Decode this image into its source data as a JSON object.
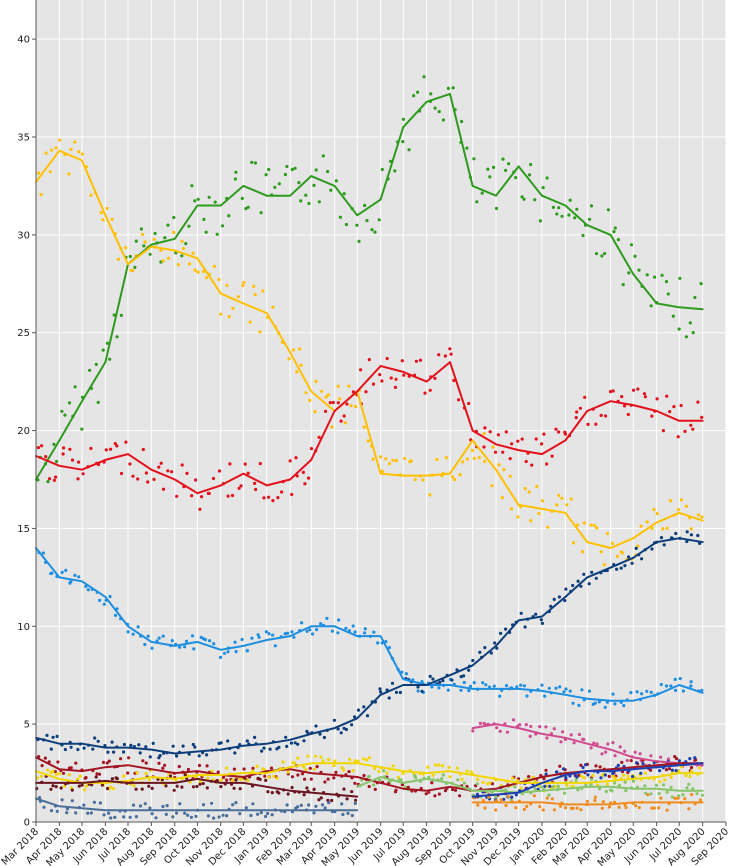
{
  "chart_data": {
    "type": "scatter",
    "title": "",
    "xlabel": "",
    "ylabel": "",
    "grid": true,
    "legend": "none",
    "x_range": [
      "2018-03-01",
      "2020-09-01"
    ],
    "ylim": [
      0,
      42
    ],
    "y_ticks": [
      "0",
      "5",
      "10",
      "15",
      "20",
      "25",
      "30",
      "35",
      "40"
    ],
    "x_ticks": [
      {
        "date": "2018-03-01",
        "label": "Mar 2018"
      },
      {
        "date": "2018-04-01",
        "label": "Apr 2018"
      },
      {
        "date": "2018-05-01",
        "label": "May 2018"
      },
      {
        "date": "2018-06-01",
        "label": "Jun 2018"
      },
      {
        "date": "2018-07-01",
        "label": "Jul 2018"
      },
      {
        "date": "2018-08-01",
        "label": "Aug 2018"
      },
      {
        "date": "2018-09-01",
        "label": "Sep 2018"
      },
      {
        "date": "2018-10-01",
        "label": "Oct 2018"
      },
      {
        "date": "2018-11-01",
        "label": "Nov 2018"
      },
      {
        "date": "2018-12-01",
        "label": "Dec 2018"
      },
      {
        "date": "2019-01-01",
        "label": "Jan 2019"
      },
      {
        "date": "2019-02-01",
        "label": "Feb 2019"
      },
      {
        "date": "2019-03-01",
        "label": "Mar 2019"
      },
      {
        "date": "2019-04-01",
        "label": "Apr 2019"
      },
      {
        "date": "2019-05-01",
        "label": "May 2019"
      },
      {
        "date": "2019-06-01",
        "label": "Jun 2019"
      },
      {
        "date": "2019-07-01",
        "label": "Jul 2019"
      },
      {
        "date": "2019-08-01",
        "label": "Aug 2019"
      },
      {
        "date": "2019-09-01",
        "label": "Sep 2019"
      },
      {
        "date": "2019-10-01",
        "label": "Oct 2019"
      },
      {
        "date": "2019-11-01",
        "label": "Nov 2019"
      },
      {
        "date": "2019-12-01",
        "label": "Dec 2019"
      },
      {
        "date": "2020-01-01",
        "label": "Jan 2020"
      },
      {
        "date": "2020-02-01",
        "label": "Feb 2020"
      },
      {
        "date": "2020-03-01",
        "label": "Mar 2020"
      },
      {
        "date": "2020-04-01",
        "label": "Apr 2020"
      },
      {
        "date": "2020-05-01",
        "label": "May 2020"
      },
      {
        "date": "2020-06-01",
        "label": "Jun 2020"
      },
      {
        "date": "2020-07-01",
        "label": "Jul 2020"
      },
      {
        "date": "2020-08-01",
        "label": "Aug 2020"
      },
      {
        "date": "2020-09-01",
        "label": "Sep 2020"
      }
    ],
    "series": [
      {
        "color": "#2e9a1e",
        "x": [
          "2018-03-01",
          "2018-04-01",
          "2018-05-01",
          "2018-06-01",
          "2018-07-01",
          "2018-08-01",
          "2018-09-01",
          "2018-10-01",
          "2018-11-01",
          "2018-12-01",
          "2019-01-01",
          "2019-02-01",
          "2019-03-01",
          "2019-04-01",
          "2019-05-01",
          "2019-06-01",
          "2019-07-01",
          "2019-08-01",
          "2019-09-01",
          "2019-10-01",
          "2019-11-01",
          "2019-12-01",
          "2020-01-01",
          "2020-02-01",
          "2020-03-01",
          "2020-04-01",
          "2020-05-01",
          "2020-06-01",
          "2020-07-01",
          "2020-08-01"
        ],
        "y": [
          17.5,
          19.5,
          21.5,
          23.5,
          28.5,
          29.5,
          29.8,
          31.5,
          31.5,
          32.5,
          32.0,
          32.0,
          33.0,
          32.5,
          31.0,
          31.8,
          35.5,
          36.8,
          37.2,
          32.5,
          32.0,
          33.5,
          32.0,
          31.5,
          30.5,
          30.0,
          28.0,
          26.5,
          26.3,
          26.2
        ]
      },
      {
        "color": "#ffc000",
        "x": [
          "2018-03-01",
          "2018-04-01",
          "2018-05-01",
          "2018-06-01",
          "2018-07-01",
          "2018-08-01",
          "2018-09-01",
          "2018-10-01",
          "2018-11-01",
          "2018-12-01",
          "2019-01-01",
          "2019-02-01",
          "2019-03-01",
          "2019-04-01",
          "2019-05-01",
          "2019-06-01",
          "2019-07-01",
          "2019-08-01",
          "2019-09-01",
          "2019-10-01",
          "2019-11-01",
          "2019-12-01",
          "2020-01-01",
          "2020-02-01",
          "2020-03-01",
          "2020-04-01",
          "2020-05-01",
          "2020-06-01",
          "2020-07-01",
          "2020-08-01"
        ],
        "y": [
          32.7,
          34.3,
          33.8,
          31.0,
          28.5,
          29.4,
          29.2,
          28.8,
          27.0,
          26.5,
          26.0,
          24.0,
          22.0,
          21.0,
          22.0,
          17.8,
          17.7,
          17.7,
          17.8,
          19.5,
          18.0,
          16.2,
          16.0,
          15.8,
          14.3,
          14.0,
          14.5,
          15.3,
          15.8,
          15.4
        ]
      },
      {
        "color": "#e3101c",
        "x": [
          "2018-03-01",
          "2018-04-01",
          "2018-05-01",
          "2018-06-01",
          "2018-07-01",
          "2018-08-01",
          "2018-09-01",
          "2018-10-01",
          "2018-11-01",
          "2018-12-01",
          "2019-01-01",
          "2019-02-01",
          "2019-03-01",
          "2019-04-01",
          "2019-05-01",
          "2019-06-01",
          "2019-07-01",
          "2019-08-01",
          "2019-09-01",
          "2019-10-01",
          "2019-11-01",
          "2019-12-01",
          "2020-01-01",
          "2020-02-01",
          "2020-03-01",
          "2020-04-01",
          "2020-05-01",
          "2020-06-01",
          "2020-07-01",
          "2020-08-01"
        ],
        "y": [
          18.7,
          18.2,
          18.0,
          18.5,
          18.8,
          18.0,
          17.5,
          16.8,
          17.2,
          17.8,
          17.2,
          17.5,
          18.5,
          21.0,
          22.0,
          23.3,
          23.0,
          22.5,
          23.5,
          20.0,
          19.3,
          19.0,
          18.8,
          19.5,
          21.0,
          21.5,
          21.3,
          21.0,
          20.5,
          20.5
        ]
      },
      {
        "color": "#1e8ee0",
        "x": [
          "2018-03-01",
          "2018-04-01",
          "2018-05-01",
          "2018-06-01",
          "2018-07-01",
          "2018-08-01",
          "2018-09-01",
          "2018-10-01",
          "2018-11-01",
          "2018-12-01",
          "2019-01-01",
          "2019-02-01",
          "2019-03-01",
          "2019-04-01",
          "2019-05-01",
          "2019-06-01",
          "2019-07-01",
          "2019-08-01",
          "2019-09-01",
          "2019-10-01",
          "2019-11-01",
          "2019-12-01",
          "2020-01-01",
          "2020-02-01",
          "2020-03-01",
          "2020-04-01",
          "2020-05-01",
          "2020-06-01",
          "2020-07-01",
          "2020-08-01"
        ],
        "y": [
          14.0,
          12.5,
          12.3,
          11.5,
          10.0,
          9.2,
          9.0,
          9.2,
          8.8,
          9.0,
          9.3,
          9.5,
          10.0,
          10.0,
          9.5,
          9.5,
          7.3,
          7.0,
          7.0,
          6.8,
          6.8,
          6.8,
          6.7,
          6.5,
          6.3,
          6.2,
          6.2,
          6.5,
          7.0,
          6.6
        ]
      },
      {
        "color": "#0d3e7a",
        "x": [
          "2018-03-01",
          "2018-04-01",
          "2018-05-01",
          "2018-06-01",
          "2018-07-01",
          "2018-08-01",
          "2018-09-01",
          "2018-10-01",
          "2018-11-01",
          "2018-12-01",
          "2019-01-01",
          "2019-02-01",
          "2019-03-01",
          "2019-04-01",
          "2019-05-01",
          "2019-06-01",
          "2019-07-01",
          "2019-08-01",
          "2019-09-01",
          "2019-10-01",
          "2019-11-01",
          "2019-12-01",
          "2020-01-01",
          "2020-02-01",
          "2020-03-01",
          "2020-04-01",
          "2020-05-01",
          "2020-06-01",
          "2020-07-01",
          "2020-08-01"
        ],
        "y": [
          4.3,
          4.0,
          4.0,
          3.8,
          3.8,
          3.7,
          3.5,
          3.6,
          3.7,
          3.9,
          4.0,
          4.2,
          4.5,
          4.8,
          5.3,
          6.5,
          7.0,
          7.0,
          7.5,
          8.0,
          9.0,
          10.3,
          10.5,
          11.5,
          12.5,
          13.0,
          13.5,
          14.3,
          14.5,
          14.3
        ]
      },
      {
        "color": "#d04a90",
        "x": [
          "2019-10-01",
          "2019-11-01",
          "2019-12-01",
          "2020-01-01",
          "2020-02-01",
          "2020-03-01",
          "2020-04-01",
          "2020-05-01",
          "2020-06-01",
          "2020-07-01",
          "2020-08-01"
        ],
        "y": [
          4.8,
          5.0,
          4.8,
          4.5,
          4.3,
          4.0,
          3.7,
          3.3,
          3.1,
          3.0,
          2.9
        ]
      },
      {
        "color": "#a31422",
        "x": [
          "2018-03-01",
          "2018-04-01",
          "2018-05-01",
          "2018-06-01",
          "2018-07-01",
          "2018-08-01",
          "2018-09-01",
          "2018-10-01",
          "2018-11-01",
          "2018-12-01",
          "2019-01-01",
          "2019-02-01",
          "2019-03-01",
          "2019-04-01",
          "2019-05-01",
          "2019-06-01",
          "2019-07-01",
          "2019-08-01",
          "2019-09-01",
          "2019-10-01",
          "2019-11-01",
          "2019-12-01",
          "2020-01-01",
          "2020-02-01",
          "2020-03-01",
          "2020-04-01",
          "2020-05-01",
          "2020-06-01",
          "2020-07-01",
          "2020-08-01"
        ],
        "y": [
          3.3,
          2.7,
          2.6,
          2.8,
          2.9,
          2.7,
          2.5,
          2.6,
          2.4,
          2.3,
          2.6,
          2.7,
          2.5,
          2.4,
          2.3,
          2.0,
          1.7,
          1.6,
          1.8,
          1.6,
          1.7,
          2.0,
          2.3,
          2.5,
          2.6,
          2.7,
          2.8,
          2.9,
          3.0,
          3.0
        ]
      },
      {
        "color": "#f2d600",
        "x": [
          "2018-03-01",
          "2018-04-01",
          "2018-05-01",
          "2018-06-01",
          "2018-07-01",
          "2018-08-01",
          "2018-09-01",
          "2018-10-01",
          "2018-11-01",
          "2018-12-01",
          "2019-01-01",
          "2019-02-01",
          "2019-03-01",
          "2019-04-01",
          "2019-05-01",
          "2019-06-01",
          "2019-07-01",
          "2019-08-01",
          "2019-09-01",
          "2019-10-01",
          "2019-11-01",
          "2019-12-01",
          "2020-01-01",
          "2020-02-01",
          "2020-03-01",
          "2020-04-01",
          "2020-05-01",
          "2020-06-01",
          "2020-07-01",
          "2020-08-01"
        ],
        "y": [
          2.6,
          2.2,
          2.0,
          2.0,
          2.1,
          2.3,
          2.2,
          2.4,
          2.4,
          2.5,
          2.5,
          2.8,
          3.0,
          3.0,
          3.0,
          2.8,
          2.6,
          2.5,
          2.6,
          2.4,
          2.2,
          2.0,
          2.0,
          2.0,
          2.0,
          2.1,
          2.2,
          2.3,
          2.5,
          2.5
        ]
      },
      {
        "color": "#6a1520",
        "x": [
          "2018-03-01",
          "2018-04-01",
          "2018-05-01",
          "2018-06-01",
          "2018-07-01",
          "2018-08-01",
          "2018-09-01",
          "2018-10-01",
          "2018-11-01",
          "2018-12-01",
          "2019-01-01",
          "2019-02-01",
          "2019-03-01",
          "2019-04-01",
          "2019-05-01"
        ],
        "y": [
          2.0,
          2.0,
          2.0,
          2.1,
          2.0,
          2.0,
          2.0,
          2.2,
          2.0,
          2.0,
          1.8,
          1.6,
          1.5,
          1.4,
          1.3
        ]
      },
      {
        "color": "#86c56a",
        "x": [
          "2019-05-01",
          "2019-06-01",
          "2019-07-01",
          "2019-08-01",
          "2019-09-01",
          "2019-10-01",
          "2019-11-01",
          "2019-12-01",
          "2020-01-01",
          "2020-02-01",
          "2020-03-01",
          "2020-04-01",
          "2020-05-01",
          "2020-06-01",
          "2020-07-01",
          "2020-08-01"
        ],
        "y": [
          1.8,
          2.3,
          2.0,
          2.2,
          2.0,
          1.6,
          1.6,
          1.5,
          1.6,
          1.7,
          1.8,
          1.8,
          1.7,
          1.7,
          1.6,
          1.6
        ]
      },
      {
        "color": "#1a3fb0",
        "x": [
          "2019-10-01",
          "2019-11-01",
          "2019-12-01",
          "2020-01-01",
          "2020-02-01",
          "2020-03-01",
          "2020-04-01",
          "2020-05-01",
          "2020-06-01",
          "2020-07-01",
          "2020-08-01"
        ],
        "y": [
          1.3,
          1.4,
          1.5,
          2.0,
          2.4,
          2.6,
          2.6,
          2.7,
          2.8,
          2.9,
          3.0
        ]
      },
      {
        "color": "#f08c1e",
        "x": [
          "2019-10-01",
          "2019-11-01",
          "2019-12-01",
          "2020-01-01",
          "2020-02-01",
          "2020-03-01",
          "2020-04-01",
          "2020-05-01",
          "2020-06-01",
          "2020-07-01",
          "2020-08-01"
        ],
        "y": [
          1.0,
          1.0,
          1.0,
          1.0,
          0.9,
          0.9,
          0.9,
          1.0,
          1.0,
          1.0,
          1.0
        ]
      },
      {
        "color": "#4a6e9a",
        "x": [
          "2018-03-01",
          "2018-04-01",
          "2018-05-01",
          "2018-06-01",
          "2018-07-01",
          "2018-08-01",
          "2018-09-01",
          "2018-10-01",
          "2018-11-01",
          "2018-12-01",
          "2019-01-01",
          "2019-02-01",
          "2019-03-01",
          "2019-04-01",
          "2019-05-01"
        ],
        "y": [
          1.2,
          0.8,
          0.7,
          0.6,
          0.6,
          0.6,
          0.6,
          0.6,
          0.6,
          0.6,
          0.6,
          0.6,
          0.6,
          0.6,
          0.6
        ]
      }
    ]
  }
}
